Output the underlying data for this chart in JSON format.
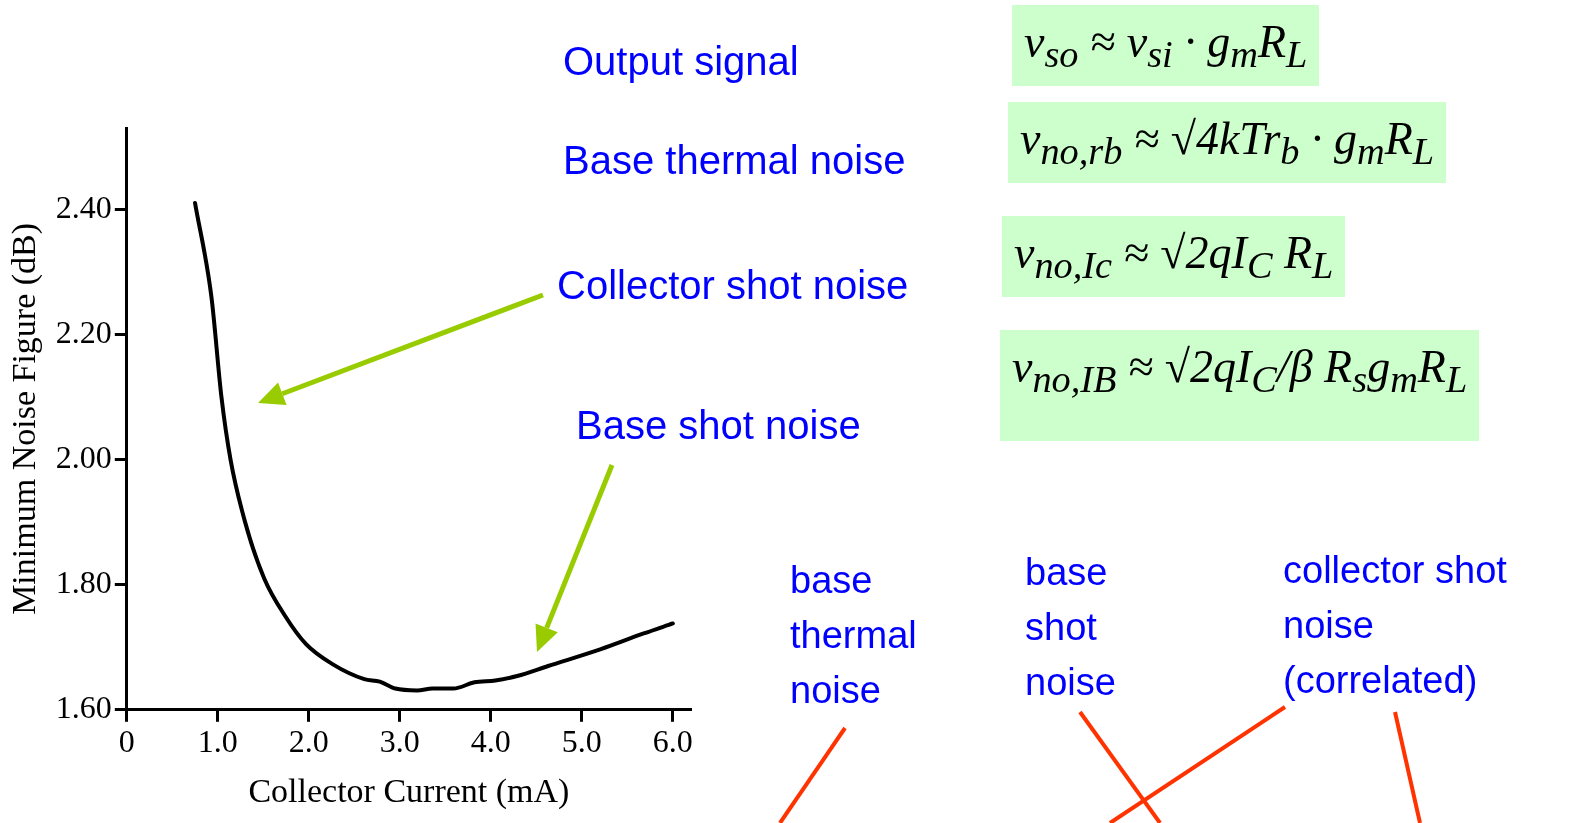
{
  "chart_data": {
    "type": "line",
    "xlabel": "Collector Current (mA)",
    "ylabel": "Minimum Noise Figure (dB)",
    "xlim": [
      0,
      6.2
    ],
    "ylim": [
      1.6,
      2.53
    ],
    "xticks": [
      0,
      {
        "value": 1,
        "label": "1.0"
      },
      {
        "value": 2,
        "label": "2.0"
      },
      {
        "value": 3,
        "label": "3.0"
      },
      {
        "value": 4,
        "label": "4.0"
      },
      {
        "value": 5,
        "label": "5.0"
      },
      {
        "value": 6,
        "label": "6.0"
      }
    ],
    "yticks": [
      {
        "value": 1.6,
        "label": "1.60"
      },
      {
        "value": 1.8,
        "label": "1.80"
      },
      {
        "value": 2,
        "label": "2.00"
      },
      {
        "value": 2.2,
        "label": "2.20"
      },
      {
        "value": 2.4,
        "label": "2.40"
      }
    ],
    "grid": false,
    "legend": false,
    "marker": "none",
    "line_style": "solid",
    "series": [
      {
        "color": "#000000",
        "x": [
          0.75,
          0.93,
          1.04,
          1.14,
          1.3,
          1.51,
          1.74,
          1.97,
          2.26,
          2.61,
          2.78,
          2.95,
          3.19,
          3.36,
          3.59,
          3.82,
          4.05,
          4.29,
          4.63,
          5.21,
          5.68,
          6.0
        ],
        "values": [
          2.41,
          2.26,
          2.1,
          2.0,
          1.9,
          1.81,
          1.75,
          1.705,
          1.673,
          1.649,
          1.645,
          1.634,
          1.631,
          1.634,
          1.634,
          1.644,
          1.647,
          1.654,
          1.67,
          1.697,
          1.722,
          1.738
        ]
      }
    ],
    "annotations": [
      "Output signal",
      "v$_{so}$ ≈ v$_{si}$ · g$_{m}$R$_{L}$",
      "Base thermal noise",
      "v$_{no,rb}$ ≈ √4kTr$_{b}$ · g$_{m}$R$_{L}$",
      "Collector shot noise",
      "v$_{no,Ic}$ ≈ √2qI$_{C}$ R$_{L}$",
      "Base shot noise",
      "v$_{no,IB}$ ≈ √2qI$_{C}$/β R$_{s}$g$_{m}$R$_{L}$",
      "base thermal noise",
      "base shot noise",
      "collector shot noise (correlated)"
    ]
  }
}
